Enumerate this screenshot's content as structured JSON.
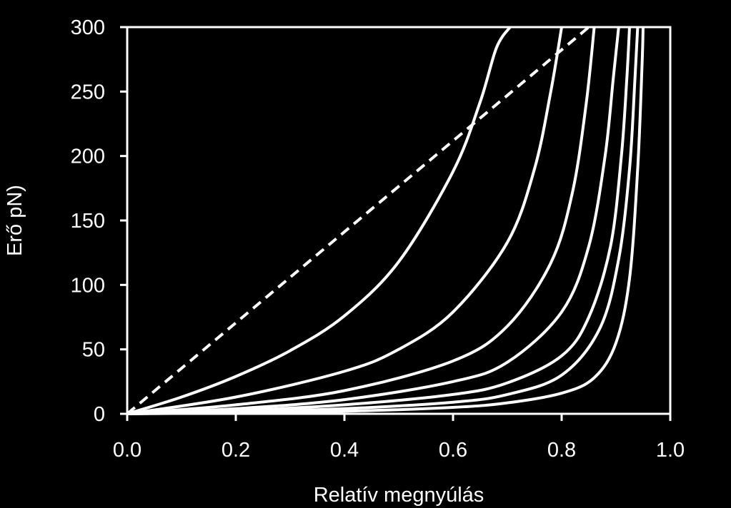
{
  "chart_data": {
    "type": "line",
    "title": "",
    "xlabel": "Relatív megnyúlás",
    "ylabel": "Erő pN)",
    "xlim": [
      0.0,
      1.0
    ],
    "ylim": [
      0,
      300
    ],
    "x_ticks": [
      "0.0",
      "0.2",
      "0.4",
      "0.6",
      "0.8",
      "1.0"
    ],
    "y_ticks": [
      "0",
      "50",
      "100",
      "150",
      "200",
      "250",
      "300"
    ],
    "grid": false,
    "legend": "none",
    "colors": {
      "background": "#000000",
      "foreground": "#ffffff"
    },
    "series": [
      {
        "style": "dashed",
        "points": [
          [
            0.0,
            0
          ],
          [
            0.85,
            300
          ]
        ]
      },
      {
        "style": "solid",
        "points": [
          [
            0.0,
            0
          ],
          [
            0.1,
            13
          ],
          [
            0.2,
            29
          ],
          [
            0.3,
            49
          ],
          [
            0.4,
            76
          ],
          [
            0.5,
            118
          ],
          [
            0.6,
            188
          ],
          [
            0.65,
            242
          ],
          [
            0.68,
            284
          ],
          [
            0.705,
            300
          ]
        ]
      },
      {
        "style": "solid",
        "points": [
          [
            0.0,
            0
          ],
          [
            0.2,
            13
          ],
          [
            0.4,
            33
          ],
          [
            0.5,
            50
          ],
          [
            0.6,
            79
          ],
          [
            0.7,
            133
          ],
          [
            0.75,
            190
          ],
          [
            0.78,
            250
          ],
          [
            0.8,
            300
          ]
        ]
      },
      {
        "style": "solid",
        "points": [
          [
            0.0,
            0
          ],
          [
            0.2,
            7
          ],
          [
            0.4,
            18
          ],
          [
            0.6,
            41
          ],
          [
            0.7,
            68
          ],
          [
            0.78,
            117
          ],
          [
            0.82,
            172
          ],
          [
            0.845,
            240
          ],
          [
            0.86,
            300
          ]
        ]
      },
      {
        "style": "solid",
        "points": [
          [
            0.0,
            0
          ],
          [
            0.2,
            4
          ],
          [
            0.4,
            11
          ],
          [
            0.6,
            25
          ],
          [
            0.7,
            40
          ],
          [
            0.8,
            79
          ],
          [
            0.85,
            130
          ],
          [
            0.88,
            200
          ],
          [
            0.895,
            260
          ],
          [
            0.905,
            300
          ]
        ]
      },
      {
        "style": "solid",
        "points": [
          [
            0.0,
            0
          ],
          [
            0.2,
            2.5
          ],
          [
            0.4,
            7
          ],
          [
            0.6,
            15
          ],
          [
            0.7,
            24
          ],
          [
            0.8,
            45
          ],
          [
            0.85,
            75
          ],
          [
            0.89,
            130
          ],
          [
            0.91,
            200
          ],
          [
            0.92,
            260
          ],
          [
            0.925,
            300
          ]
        ]
      },
      {
        "style": "solid",
        "points": [
          [
            0.0,
            0
          ],
          [
            0.2,
            1.5
          ],
          [
            0.4,
            4
          ],
          [
            0.6,
            9
          ],
          [
            0.7,
            15
          ],
          [
            0.8,
            30
          ],
          [
            0.87,
            66
          ],
          [
            0.905,
            120
          ],
          [
            0.925,
            190
          ],
          [
            0.935,
            260
          ],
          [
            0.94,
            300
          ]
        ]
      },
      {
        "style": "solid",
        "points": [
          [
            0.0,
            0
          ],
          [
            0.2,
            0.7
          ],
          [
            0.4,
            2
          ],
          [
            0.6,
            5
          ],
          [
            0.7,
            8.5
          ],
          [
            0.8,
            16
          ],
          [
            0.86,
            28
          ],
          [
            0.9,
            55
          ],
          [
            0.925,
            105
          ],
          [
            0.94,
            190
          ],
          [
            0.948,
            270
          ],
          [
            0.95,
            300
          ]
        ]
      }
    ]
  }
}
